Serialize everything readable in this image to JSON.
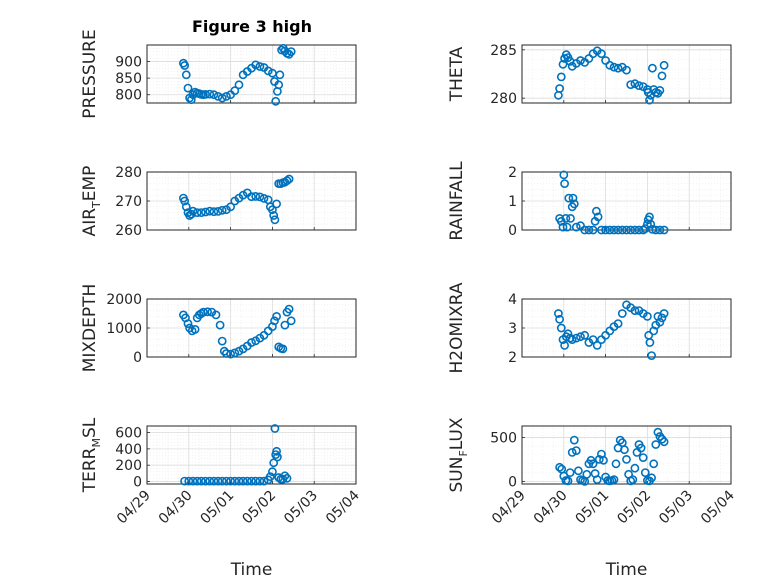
{
  "title": "Figure 3 high",
  "chart_data": [
    {
      "type": "scatter",
      "ylabel": "PRESSURE",
      "ylim": [
        775,
        950
      ],
      "yticks": [
        800,
        850,
        900
      ],
      "x": [
        0.87,
        0.9,
        0.94,
        0.98,
        1.02,
        1.06,
        1.1,
        1.15,
        1.2,
        1.25,
        1.3,
        1.35,
        1.4,
        1.5,
        1.6,
        1.7,
        1.8,
        1.9,
        2.0,
        2.1,
        2.2,
        2.3,
        2.4,
        2.5,
        2.6,
        2.7,
        2.8,
        2.9,
        3.0,
        3.05,
        3.08,
        3.12,
        3.15,
        3.18,
        3.22,
        3.26,
        3.3,
        3.35,
        3.4,
        3.45
      ],
      "y": [
        895,
        888,
        860,
        820,
        790,
        785,
        800,
        808,
        805,
        803,
        801,
        800,
        801,
        802,
        800,
        795,
        790,
        795,
        800,
        812,
        830,
        860,
        870,
        880,
        890,
        885,
        882,
        872,
        865,
        840,
        780,
        810,
        830,
        860,
        935,
        940,
        932,
        925,
        922,
        930
      ]
    },
    {
      "type": "scatter",
      "ylabel": "THETA",
      "ylim": [
        279.5,
        285.5
      ],
      "yticks": [
        280,
        285
      ],
      "x": [
        0.87,
        0.9,
        0.94,
        0.98,
        1.02,
        1.06,
        1.1,
        1.15,
        1.2,
        1.3,
        1.4,
        1.5,
        1.6,
        1.7,
        1.8,
        1.9,
        2.0,
        2.1,
        2.2,
        2.3,
        2.4,
        2.5,
        2.6,
        2.7,
        2.8,
        2.9,
        3.0,
        3.02,
        3.05,
        3.08,
        3.12,
        3.15,
        3.2,
        3.25,
        3.3,
        3.35,
        3.4
      ],
      "y": [
        280.3,
        281,
        282.2,
        283.5,
        284.1,
        284.5,
        284.2,
        283.8,
        283.3,
        283.6,
        283.9,
        283.7,
        284.1,
        284.6,
        284.9,
        284.6,
        283.9,
        283.4,
        283.2,
        283.1,
        283.2,
        282.9,
        281.4,
        281.5,
        281.3,
        281.2,
        280.9,
        280.6,
        279.8,
        280.3,
        283.1,
        280.9,
        280.6,
        280.5,
        280.8,
        282.3,
        283.4
      ]
    },
    {
      "type": "scatter",
      "ylabel": "AIR_TEMP",
      "ylim": [
        260,
        280
      ],
      "yticks": [
        260,
        270,
        280
      ],
      "x": [
        0.87,
        0.9,
        0.94,
        0.98,
        1.02,
        1.06,
        1.1,
        1.2,
        1.3,
        1.4,
        1.5,
        1.6,
        1.7,
        1.8,
        1.9,
        2.0,
        2.1,
        2.2,
        2.3,
        2.4,
        2.5,
        2.6,
        2.7,
        2.8,
        2.9,
        2.95,
        3.0,
        3.03,
        3.06,
        3.1,
        3.15,
        3.2,
        3.25,
        3.3,
        3.35,
        3.4
      ],
      "y": [
        271,
        270,
        268,
        266,
        265,
        265.5,
        266.5,
        266,
        266,
        266.2,
        266.5,
        266.3,
        266.4,
        266.8,
        267,
        268,
        270,
        271,
        272,
        272.8,
        271.5,
        271.6,
        271.4,
        270.9,
        270.4,
        268,
        267,
        265,
        263.5,
        269,
        276,
        276,
        276.3,
        276.5,
        277,
        277.6
      ]
    },
    {
      "type": "scatter",
      "ylabel": "RAINFALL",
      "ylim": [
        0,
        2
      ],
      "yticks": [
        0,
        1,
        2
      ],
      "x": [
        0.9,
        0.94,
        0.98,
        1.0,
        1.02,
        1.05,
        1.08,
        1.12,
        1.16,
        1.2,
        1.22,
        1.25,
        1.3,
        1.4,
        1.5,
        1.6,
        1.7,
        1.75,
        1.78,
        1.82,
        1.9,
        2.0,
        2.1,
        2.2,
        2.3,
        2.4,
        2.5,
        2.6,
        2.7,
        2.8,
        2.9,
        2.95,
        3.0,
        3.02,
        3.05,
        3.08,
        3.12,
        3.2,
        3.3,
        3.4
      ],
      "y": [
        0.4,
        0.3,
        0.1,
        1.9,
        1.6,
        0.4,
        0.1,
        1.1,
        0.4,
        0.8,
        1.1,
        0.9,
        0.1,
        0.15,
        0,
        0,
        0,
        0.3,
        0.65,
        0.45,
        0,
        0,
        0,
        0,
        0,
        0,
        0,
        0,
        0,
        0,
        0,
        0.05,
        0.2,
        0.35,
        0.45,
        0.2,
        0.02,
        0,
        0,
        0
      ]
    },
    {
      "type": "scatter",
      "ylabel": "MIXDEPTH",
      "ylim": [
        0,
        2000
      ],
      "yticks": [
        0,
        1000,
        2000
      ],
      "x": [
        0.87,
        0.92,
        0.98,
        1.02,
        1.08,
        1.15,
        1.2,
        1.25,
        1.3,
        1.35,
        1.45,
        1.55,
        1.65,
        1.75,
        1.8,
        1.85,
        1.9,
        2.0,
        2.1,
        2.2,
        2.3,
        2.4,
        2.5,
        2.6,
        2.7,
        2.8,
        2.9,
        3.0,
        3.05,
        3.1,
        3.15,
        3.2,
        3.25,
        3.3,
        3.35,
        3.4,
        3.45
      ],
      "y": [
        1450,
        1350,
        1150,
        1000,
        900,
        950,
        1350,
        1450,
        1500,
        1550,
        1560,
        1550,
        1450,
        1100,
        550,
        200,
        120,
        100,
        140,
        200,
        280,
        380,
        500,
        560,
        650,
        750,
        900,
        1050,
        1250,
        1400,
        350,
        300,
        280,
        1100,
        1550,
        1650,
        1250
      ]
    },
    {
      "type": "scatter",
      "ylabel": "H2OMIXRA",
      "ylim": [
        2,
        4
      ],
      "yticks": [
        2,
        3,
        4
      ],
      "x": [
        0.87,
        0.9,
        0.94,
        0.98,
        1.02,
        1.06,
        1.1,
        1.15,
        1.2,
        1.3,
        1.4,
        1.5,
        1.6,
        1.7,
        1.8,
        1.9,
        2.0,
        2.1,
        2.2,
        2.3,
        2.4,
        2.5,
        2.6,
        2.7,
        2.8,
        2.9,
        3.0,
        3.03,
        3.06,
        3.1,
        3.15,
        3.2,
        3.25,
        3.3,
        3.35,
        3.4
      ],
      "y": [
        3.5,
        3.3,
        3.0,
        2.6,
        2.4,
        2.7,
        2.8,
        2.65,
        2.6,
        2.65,
        2.7,
        2.75,
        2.5,
        2.6,
        2.4,
        2.6,
        2.75,
        2.9,
        3.05,
        3.15,
        3.5,
        3.8,
        3.7,
        3.6,
        3.6,
        3.5,
        3.4,
        2.75,
        2.5,
        2.05,
        2.9,
        3.1,
        3.4,
        3.2,
        3.35,
        3.5
      ]
    },
    {
      "type": "scatter",
      "ylabel": "TERR_MSL",
      "ylim": [
        -30,
        680
      ],
      "yticks": [
        0,
        200,
        400,
        600
      ],
      "x": [
        0.9,
        1.0,
        1.1,
        1.2,
        1.3,
        1.4,
        1.5,
        1.6,
        1.7,
        1.8,
        1.9,
        2.0,
        2.1,
        2.2,
        2.3,
        2.4,
        2.5,
        2.6,
        2.7,
        2.8,
        2.9,
        2.95,
        3.0,
        3.03,
        3.06,
        3.08,
        3.1,
        3.12,
        3.15,
        3.2,
        3.25,
        3.3,
        3.35
      ],
      "y": [
        5,
        5,
        5,
        5,
        5,
        5,
        5,
        5,
        5,
        5,
        5,
        5,
        5,
        5,
        5,
        5,
        5,
        5,
        5,
        5,
        20,
        60,
        120,
        230,
        650,
        330,
        370,
        300,
        50,
        30,
        30,
        70,
        40
      ]
    },
    {
      "type": "scatter",
      "ylabel": "SUN_FLUX",
      "ylim": [
        -30,
        630
      ],
      "yticks": [
        0,
        500
      ],
      "x": [
        0.9,
        0.95,
        1.0,
        1.05,
        1.1,
        1.15,
        1.2,
        1.25,
        1.3,
        1.35,
        1.4,
        1.45,
        1.5,
        1.55,
        1.6,
        1.65,
        1.7,
        1.75,
        1.8,
        1.85,
        1.9,
        1.95,
        2.0,
        2.05,
        2.1,
        2.15,
        2.2,
        2.25,
        2.3,
        2.35,
        2.4,
        2.45,
        2.5,
        2.55,
        2.6,
        2.65,
        2.7,
        2.75,
        2.8,
        2.85,
        2.9,
        2.95,
        3.0,
        3.05,
        3.1,
        3.15,
        3.2,
        3.25,
        3.3,
        3.35,
        3.4
      ],
      "y": [
        160,
        140,
        60,
        10,
        5,
        100,
        330,
        470,
        350,
        120,
        20,
        10,
        0,
        80,
        200,
        240,
        200,
        90,
        20,
        250,
        310,
        240,
        50,
        10,
        5,
        10,
        20,
        200,
        380,
        470,
        440,
        360,
        250,
        80,
        5,
        20,
        150,
        330,
        420,
        380,
        270,
        100,
        10,
        5,
        40,
        200,
        420,
        560,
        510,
        480,
        450
      ]
    }
  ],
  "x_axis": {
    "ticks": [
      "04/29",
      "04/30",
      "05/01",
      "05/02",
      "05/03",
      "05/04"
    ],
    "label": "Time"
  },
  "colors": {
    "marker": "#0072BD",
    "axis": "#262626"
  }
}
